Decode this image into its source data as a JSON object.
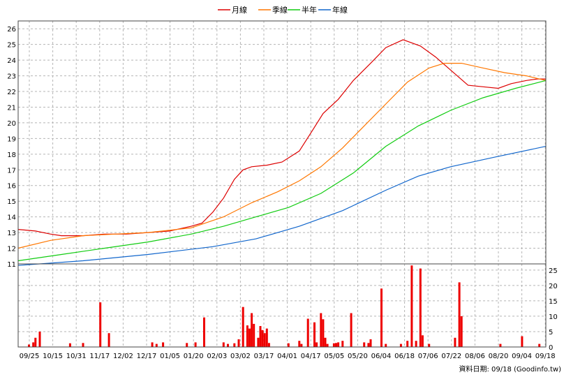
{
  "chart_data": [
    {
      "type": "line",
      "panel": "price",
      "legend": [
        {
          "name": "月線",
          "color": "#dd0000"
        },
        {
          "name": "季線",
          "color": "#ff7700"
        },
        {
          "name": "半年",
          "color": "#11cc11"
        },
        {
          "name": "年線",
          "color": "#1166cc"
        }
      ],
      "ylim": [
        11,
        26.5
      ],
      "yticks": [
        "11",
        "12",
        "13",
        "14",
        "15",
        "16",
        "17",
        "18",
        "19",
        "20",
        "21",
        "22",
        "23",
        "24",
        "25",
        "26"
      ],
      "xtick_labels": [
        "09/25",
        "10/15",
        "10/31",
        "11/17",
        "12/02",
        "12/17",
        "01/05",
        "01/20",
        "02/03",
        "03/02",
        "03/17",
        "04/01",
        "04/17",
        "05/05",
        "05/20",
        "06/04",
        "06/18",
        "07/06",
        "07/22",
        "08/06",
        "08/20",
        "09/04",
        "09/18"
      ],
      "n_days": 245,
      "grid": true,
      "series": [
        {
          "name": "月線",
          "color": "#dd0000",
          "points": [
            [
              0,
              13.2
            ],
            [
              8,
              13.1
            ],
            [
              15,
              12.9
            ],
            [
              20,
              12.8
            ],
            [
              30,
              12.8
            ],
            [
              40,
              12.9
            ],
            [
              50,
              12.9
            ],
            [
              60,
              13.0
            ],
            [
              70,
              13.1
            ],
            [
              80,
              13.4
            ],
            [
              85,
              13.6
            ],
            [
              90,
              14.3
            ],
            [
              95,
              15.2
            ],
            [
              100,
              16.4
            ],
            [
              104,
              17.0
            ],
            [
              108,
              17.2
            ],
            [
              115,
              17.3
            ],
            [
              122,
              17.5
            ],
            [
              130,
              18.2
            ],
            [
              136,
              19.5
            ],
            [
              141,
              20.6
            ],
            [
              148,
              21.5
            ],
            [
              155,
              22.7
            ],
            [
              163,
              23.8
            ],
            [
              170,
              24.8
            ],
            [
              178,
              25.3
            ],
            [
              186,
              24.9
            ],
            [
              193,
              24.2
            ],
            [
              198,
              23.6
            ],
            [
              203,
              23.0
            ],
            [
              208,
              22.4
            ],
            [
              215,
              22.3
            ],
            [
              222,
              22.2
            ],
            [
              228,
              22.5
            ],
            [
              235,
              22.7
            ],
            [
              240,
              22.8
            ],
            [
              244,
              22.8
            ]
          ]
        },
        {
          "name": "季線",
          "color": "#ff7700",
          "points": [
            [
              0,
              12.0
            ],
            [
              15,
              12.5
            ],
            [
              30,
              12.8
            ],
            [
              45,
              12.9
            ],
            [
              60,
              13.0
            ],
            [
              80,
              13.3
            ],
            [
              95,
              14.0
            ],
            [
              108,
              14.9
            ],
            [
              120,
              15.6
            ],
            [
              130,
              16.3
            ],
            [
              140,
              17.2
            ],
            [
              150,
              18.4
            ],
            [
              160,
              19.8
            ],
            [
              170,
              21.2
            ],
            [
              180,
              22.6
            ],
            [
              190,
              23.5
            ],
            [
              197,
              23.8
            ],
            [
              205,
              23.8
            ],
            [
              215,
              23.5
            ],
            [
              225,
              23.2
            ],
            [
              235,
              23.0
            ],
            [
              244,
              22.7
            ]
          ]
        },
        {
          "name": "半年",
          "color": "#11cc11",
          "points": [
            [
              0,
              11.2
            ],
            [
              20,
              11.6
            ],
            [
              40,
              12.0
            ],
            [
              60,
              12.4
            ],
            [
              80,
              12.9
            ],
            [
              95,
              13.4
            ],
            [
              110,
              14.0
            ],
            [
              125,
              14.6
            ],
            [
              140,
              15.5
            ],
            [
              155,
              16.8
            ],
            [
              170,
              18.5
            ],
            [
              185,
              19.8
            ],
            [
              200,
              20.8
            ],
            [
              215,
              21.6
            ],
            [
              230,
              22.2
            ],
            [
              244,
              22.7
            ]
          ]
        },
        {
          "name": "年線",
          "color": "#1166cc",
          "points": [
            [
              0,
              10.9
            ],
            [
              30,
              11.2
            ],
            [
              60,
              11.6
            ],
            [
              90,
              12.1
            ],
            [
              110,
              12.6
            ],
            [
              130,
              13.4
            ],
            [
              150,
              14.4
            ],
            [
              170,
              15.7
            ],
            [
              185,
              16.6
            ],
            [
              200,
              17.2
            ],
            [
              220,
              17.8
            ],
            [
              244,
              18.5
            ]
          ]
        }
      ]
    },
    {
      "type": "bar",
      "panel": "volume",
      "ylim": [
        0,
        27
      ],
      "yticks": [
        "0",
        "5",
        "10",
        "15",
        "20",
        "25"
      ],
      "bars": [
        [
          5,
          0.8
        ],
        [
          7,
          1.5
        ],
        [
          8,
          3.0
        ],
        [
          10,
          5.0
        ],
        [
          24,
          1.2
        ],
        [
          30,
          1.3
        ],
        [
          38,
          14.5
        ],
        [
          42,
          4.5
        ],
        [
          62,
          1.5
        ],
        [
          64,
          1.0
        ],
        [
          67,
          1.5
        ],
        [
          78,
          1.3
        ],
        [
          82,
          1.5
        ],
        [
          86,
          9.6
        ],
        [
          95,
          1.5
        ],
        [
          97,
          1.0
        ],
        [
          100,
          1.2
        ],
        [
          102,
          2.5
        ],
        [
          104,
          13.0
        ],
        [
          106,
          7.0
        ],
        [
          107,
          6.0
        ],
        [
          108,
          11.0
        ],
        [
          109,
          7.5
        ],
        [
          111,
          3.0
        ],
        [
          112,
          6.8
        ],
        [
          113,
          5.5
        ],
        [
          114,
          4.5
        ],
        [
          115,
          6.0
        ],
        [
          116,
          1.3
        ],
        [
          125,
          1.2
        ],
        [
          130,
          2.0
        ],
        [
          131,
          1.0
        ],
        [
          134,
          9.2
        ],
        [
          137,
          8.0
        ],
        [
          138,
          1.5
        ],
        [
          140,
          11.0
        ],
        [
          141,
          9.0
        ],
        [
          142,
          3.0
        ],
        [
          143,
          1.0
        ],
        [
          146,
          1.2
        ],
        [
          147,
          1.3
        ],
        [
          148,
          1.5
        ],
        [
          150,
          2.0
        ],
        [
          154,
          11.0
        ],
        [
          160,
          1.5
        ],
        [
          162,
          1.3
        ],
        [
          163,
          2.5
        ],
        [
          168,
          19.0
        ],
        [
          170,
          1.0
        ],
        [
          177,
          1.0
        ],
        [
          180,
          2.0
        ],
        [
          182,
          26.5
        ],
        [
          184,
          2.0
        ],
        [
          186,
          25.5
        ],
        [
          187,
          3.8
        ],
        [
          190,
          1.0
        ],
        [
          202,
          3.0
        ],
        [
          204,
          21.0
        ],
        [
          205,
          10.0
        ],
        [
          223,
          1.0
        ],
        [
          233,
          3.5
        ],
        [
          241,
          1.0
        ]
      ]
    }
  ],
  "footer": {
    "date_label": "資料日期: 09/18 (Goodinfo.tw)"
  }
}
